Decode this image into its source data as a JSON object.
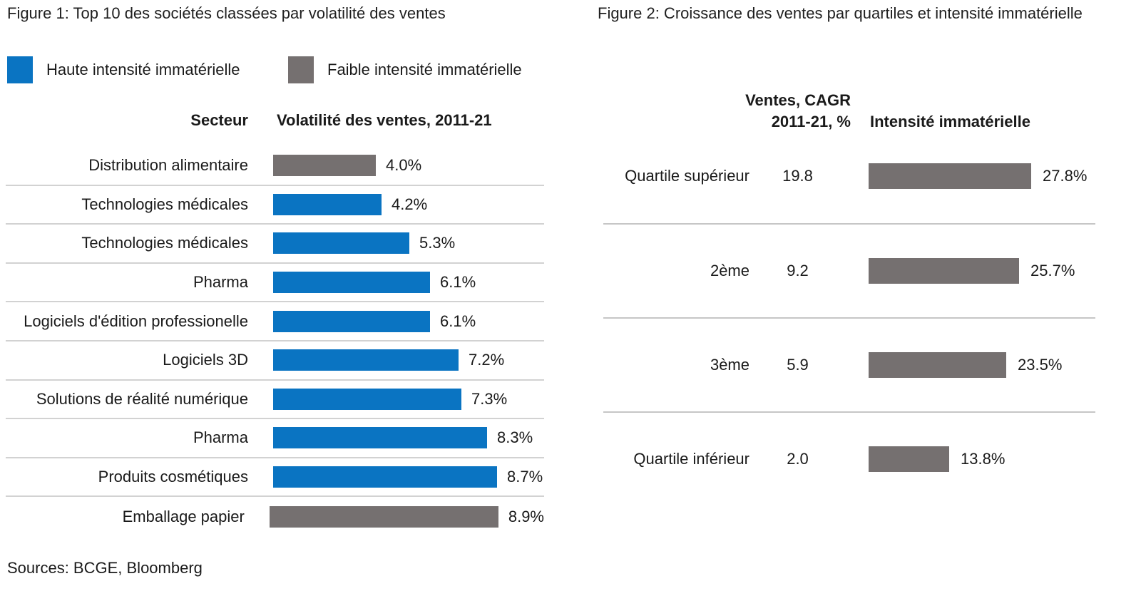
{
  "colors": {
    "high_intensity": "#0a74c2",
    "low_intensity": "#757070",
    "separator": "#d2d2d2"
  },
  "figure1": {
    "title": "Figure 1: Top 10 des sociétés classées par volatilité des ventes",
    "legend": [
      {
        "label": "Haute intensité immatérielle",
        "color": "#0a74c2"
      },
      {
        "label": "Faible intensité immatérielle",
        "color": "#757070"
      }
    ],
    "col_sector": "Secteur",
    "col_value": "Volatilité des ventes, 2011-21",
    "rows": [
      {
        "sector": "Distribution alimentaire",
        "value": 4.0,
        "label": "4.0%",
        "intensity": "low"
      },
      {
        "sector": "Technologies médicales",
        "value": 4.2,
        "label": "4.2%",
        "intensity": "high"
      },
      {
        "sector": "Technologies médicales",
        "value": 5.3,
        "label": "5.3%",
        "intensity": "high"
      },
      {
        "sector": "Pharma",
        "value": 6.1,
        "label": "6.1%",
        "intensity": "high"
      },
      {
        "sector": "Logiciels d'édition professionelle",
        "value": 6.1,
        "label": "6.1%",
        "intensity": "high"
      },
      {
        "sector": "Logiciels 3D",
        "value": 7.2,
        "label": "7.2%",
        "intensity": "high"
      },
      {
        "sector": "Solutions de réalité numérique",
        "value": 7.3,
        "label": "7.3%",
        "intensity": "high"
      },
      {
        "sector": "Pharma",
        "value": 8.3,
        "label": "8.3%",
        "intensity": "high"
      },
      {
        "sector": "Produits cosmétiques",
        "value": 8.7,
        "label": "8.7%",
        "intensity": "high"
      },
      {
        "sector": "Emballage papier",
        "value": 8.9,
        "label": "8.9%",
        "intensity": "low"
      }
    ]
  },
  "figure2": {
    "title": "Figure 2: Croissance des ventes par quartiles et intensité immatérielle",
    "col_cagr_line1": "Ventes, CAGR",
    "col_cagr_line2": "2011-21, %",
    "col_intensity": "Intensité immatérielle",
    "rows": [
      {
        "quartile": "Quartile supérieur",
        "cagr": "19.8",
        "value": 27.8,
        "label": "27.8%"
      },
      {
        "quartile": "2ème",
        "cagr": "9.2",
        "value": 25.7,
        "label": "25.7%"
      },
      {
        "quartile": "3ème",
        "cagr": "5.9",
        "value": 23.5,
        "label": "23.5%"
      },
      {
        "quartile": "Quartile inférieur",
        "cagr": "2.0",
        "value": 13.8,
        "label": "13.8%"
      }
    ]
  },
  "sources": "Sources: BCGE, Bloomberg",
  "chart_data": [
    {
      "type": "bar",
      "orientation": "horizontal",
      "title": "Figure 1: Top 10 des sociétés classées par volatilité des ventes",
      "xlabel": "Volatilité des ventes, 2011-21",
      "ylabel": "Secteur",
      "categories": [
        "Distribution alimentaire",
        "Technologies médicales",
        "Technologies médicales",
        "Pharma",
        "Logiciels d'édition professionelle",
        "Logiciels 3D",
        "Solutions de réalité numérique",
        "Pharma",
        "Produits cosmétiques",
        "Emballage papier"
      ],
      "values": [
        4.0,
        4.2,
        5.3,
        6.1,
        6.1,
        7.2,
        7.3,
        8.3,
        8.7,
        8.9
      ],
      "unit": "%",
      "bar_groups": [
        "Faible intensité immatérielle",
        "Haute intensité immatérielle",
        "Haute intensité immatérielle",
        "Haute intensité immatérielle",
        "Haute intensité immatérielle",
        "Haute intensité immatérielle",
        "Haute intensité immatérielle",
        "Haute intensité immatérielle",
        "Haute intensité immatérielle",
        "Faible intensité immatérielle"
      ],
      "legend": [
        "Haute intensité immatérielle",
        "Faible intensité immatérielle"
      ],
      "legend_position": "top",
      "grid": false,
      "xlim": [
        0,
        9.5
      ]
    },
    {
      "type": "bar",
      "orientation": "horizontal",
      "title": "Figure 2: Croissance des ventes par quartiles et intensité immatérielle",
      "categories": [
        "Quartile supérieur",
        "2ème",
        "3ème",
        "Quartile inférieur"
      ],
      "series": [
        {
          "name": "Ventes, CAGR 2011-21, %",
          "values": [
            19.8,
            9.2,
            5.9,
            2.0
          ],
          "display": "text"
        },
        {
          "name": "Intensité immatérielle",
          "values": [
            27.8,
            25.7,
            23.5,
            13.8
          ],
          "unit": "%",
          "display": "bar"
        }
      ],
      "grid": false,
      "xlim": [
        0,
        30
      ]
    }
  ]
}
